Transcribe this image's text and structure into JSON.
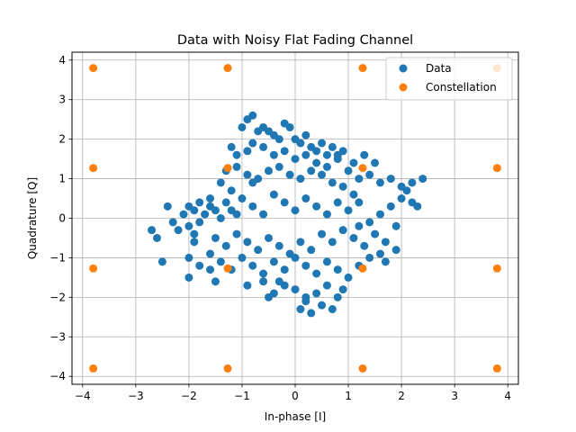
{
  "chart_data": {
    "type": "scatter",
    "title": "Data with Noisy Flat Fading Channel",
    "xlabel": "In-phase [I]",
    "ylabel": "Quadrature [Q]",
    "xlim": [
      -4.2,
      4.2
    ],
    "ylim": [
      -4.2,
      4.2
    ],
    "xticks": [
      -4,
      -3,
      -2,
      -1,
      0,
      1,
      2,
      3,
      4
    ],
    "yticks": [
      -4,
      -3,
      -2,
      -1,
      0,
      1,
      2,
      3,
      4
    ],
    "grid": true,
    "legend": {
      "placement": "top-right",
      "entries": [
        "Data",
        "Constellation"
      ]
    },
    "series": [
      {
        "name": "Data",
        "color": "#1f77b4",
        "points": [
          [
            -1.0,
            2.3
          ],
          [
            -0.9,
            2.5
          ],
          [
            -0.8,
            2.6
          ],
          [
            -0.7,
            2.2
          ],
          [
            -0.6,
            2.3
          ],
          [
            -0.5,
            2.2
          ],
          [
            -0.4,
            2.1
          ],
          [
            -0.3,
            2.0
          ],
          [
            -0.2,
            2.4
          ],
          [
            -0.1,
            2.3
          ],
          [
            0.0,
            2.0
          ],
          [
            0.1,
            1.9
          ],
          [
            0.2,
            2.1
          ],
          [
            0.3,
            1.8
          ],
          [
            0.4,
            1.7
          ],
          [
            0.5,
            1.9
          ],
          [
            0.6,
            1.6
          ],
          [
            0.7,
            1.8
          ],
          [
            0.8,
            1.5
          ],
          [
            0.9,
            1.7
          ],
          [
            -1.2,
            1.8
          ],
          [
            -1.1,
            1.6
          ],
          [
            -0.9,
            1.7
          ],
          [
            -0.8,
            1.9
          ],
          [
            -0.6,
            1.8
          ],
          [
            -0.4,
            1.6
          ],
          [
            -0.2,
            1.7
          ],
          [
            0.0,
            1.5
          ],
          [
            0.2,
            1.6
          ],
          [
            0.4,
            1.4
          ],
          [
            -1.3,
            1.2
          ],
          [
            -1.1,
            1.3
          ],
          [
            -0.9,
            1.1
          ],
          [
            -0.7,
            1.0
          ],
          [
            -0.5,
            1.2
          ],
          [
            -0.3,
            1.3
          ],
          [
            -0.1,
            1.1
          ],
          [
            0.1,
            1.0
          ],
          [
            0.3,
            1.2
          ],
          [
            0.5,
            1.1
          ],
          [
            1.0,
            1.2
          ],
          [
            1.2,
            1.0
          ],
          [
            1.4,
            1.1
          ],
          [
            1.6,
            0.9
          ],
          [
            1.8,
            1.0
          ],
          [
            2.0,
            0.8
          ],
          [
            2.2,
            0.9
          ],
          [
            2.4,
            1.0
          ],
          [
            1.3,
            1.6
          ],
          [
            1.5,
            1.4
          ],
          [
            -2.0,
            0.3
          ],
          [
            -1.9,
            0.2
          ],
          [
            -1.8,
            0.4
          ],
          [
            -1.7,
            0.1
          ],
          [
            -1.6,
            0.3
          ],
          [
            -1.5,
            0.2
          ],
          [
            -1.4,
            0.0
          ],
          [
            -1.3,
            0.4
          ],
          [
            -1.2,
            0.2
          ],
          [
            -1.1,
            0.1
          ],
          [
            -2.4,
            0.3
          ],
          [
            -2.3,
            -0.1
          ],
          [
            -2.2,
            -0.3
          ],
          [
            -2.1,
            0.1
          ],
          [
            -2.0,
            -0.2
          ],
          [
            -1.9,
            -0.4
          ],
          [
            -1.8,
            -0.1
          ],
          [
            -2.6,
            -0.5
          ],
          [
            -2.7,
            -0.3
          ],
          [
            -2.5,
            -1.1
          ],
          [
            -1.0,
            0.5
          ],
          [
            -0.8,
            0.3
          ],
          [
            -0.6,
            0.1
          ],
          [
            -0.4,
            0.6
          ],
          [
            -0.2,
            0.4
          ],
          [
            0.0,
            0.2
          ],
          [
            0.2,
            0.5
          ],
          [
            0.4,
            0.3
          ],
          [
            0.6,
            0.1
          ],
          [
            0.8,
            0.4
          ],
          [
            1.0,
            0.2
          ],
          [
            1.2,
            0.4
          ],
          [
            1.4,
            -0.1
          ],
          [
            1.6,
            0.1
          ],
          [
            1.8,
            0.3
          ],
          [
            2.0,
            0.5
          ],
          [
            2.1,
            0.7
          ],
          [
            2.2,
            0.4
          ],
          [
            2.3,
            0.3
          ],
          [
            1.9,
            -0.2
          ],
          [
            -1.5,
            -0.5
          ],
          [
            -1.3,
            -0.7
          ],
          [
            -1.1,
            -0.4
          ],
          [
            -0.9,
            -0.6
          ],
          [
            -0.7,
            -0.8
          ],
          [
            -0.5,
            -0.5
          ],
          [
            -0.3,
            -0.7
          ],
          [
            -0.1,
            -0.9
          ],
          [
            0.1,
            -0.6
          ],
          [
            0.3,
            -0.8
          ],
          [
            0.5,
            -0.4
          ],
          [
            0.7,
            -0.6
          ],
          [
            0.9,
            -0.3
          ],
          [
            1.1,
            -0.5
          ],
          [
            1.3,
            -0.7
          ],
          [
            1.5,
            -0.4
          ],
          [
            1.7,
            -0.6
          ],
          [
            1.9,
            -0.8
          ],
          [
            1.2,
            -0.2
          ],
          [
            1.6,
            -0.9
          ],
          [
            -2.0,
            -1.0
          ],
          [
            -1.8,
            -1.2
          ],
          [
            -1.6,
            -0.9
          ],
          [
            -1.4,
            -1.1
          ],
          [
            -1.2,
            -1.3
          ],
          [
            -1.0,
            -1.0
          ],
          [
            -0.8,
            -1.2
          ],
          [
            -0.6,
            -1.4
          ],
          [
            -0.4,
            -1.1
          ],
          [
            -0.2,
            -1.3
          ],
          [
            0.0,
            -1.0
          ],
          [
            0.2,
            -1.2
          ],
          [
            0.4,
            -1.4
          ],
          [
            0.6,
            -1.1
          ],
          [
            0.8,
            -1.3
          ],
          [
            1.0,
            -1.5
          ],
          [
            1.2,
            -1.2
          ],
          [
            1.4,
            -1.0
          ],
          [
            1.7,
            -1.1
          ],
          [
            -1.5,
            -1.6
          ],
          [
            -0.9,
            -1.7
          ],
          [
            -0.6,
            -1.6
          ],
          [
            -0.4,
            -1.9
          ],
          [
            -0.2,
            -1.7
          ],
          [
            0.0,
            -1.8
          ],
          [
            0.2,
            -2.0
          ],
          [
            0.4,
            -1.9
          ],
          [
            0.6,
            -1.7
          ],
          [
            0.8,
            -2.0
          ],
          [
            0.9,
            -1.8
          ],
          [
            0.1,
            -2.3
          ],
          [
            0.3,
            -2.4
          ],
          [
            0.5,
            -2.2
          ],
          [
            0.7,
            -2.3
          ],
          [
            0.2,
            -2.1
          ],
          [
            -0.5,
            -2.0
          ],
          [
            -0.3,
            -1.6
          ],
          [
            -2.0,
            -1.5
          ],
          [
            -1.9,
            -0.6
          ],
          [
            -1.6,
            -1.3
          ],
          [
            -1.2,
            0.7
          ],
          [
            -1.4,
            0.9
          ],
          [
            -1.6,
            0.5
          ],
          [
            -0.8,
            0.9
          ],
          [
            0.7,
            0.9
          ],
          [
            0.9,
            0.8
          ],
          [
            1.1,
            0.6
          ],
          [
            0.6,
            1.3
          ],
          [
            0.8,
            1.6
          ],
          [
            1.1,
            1.4
          ]
        ]
      },
      {
        "name": "Constellation",
        "color": "#ff7f0e",
        "points": [
          [
            -3.8,
            3.8
          ],
          [
            -1.27,
            3.8
          ],
          [
            1.27,
            3.8
          ],
          [
            3.8,
            3.8
          ],
          [
            -3.8,
            1.27
          ],
          [
            -1.27,
            1.27
          ],
          [
            1.27,
            1.27
          ],
          [
            3.8,
            1.27
          ],
          [
            -3.8,
            -1.27
          ],
          [
            -1.27,
            -1.27
          ],
          [
            1.27,
            -1.27
          ],
          [
            3.8,
            -1.27
          ],
          [
            -3.8,
            -3.8
          ],
          [
            -1.27,
            -3.8
          ],
          [
            1.27,
            -3.8
          ],
          [
            3.8,
            -3.8
          ]
        ]
      }
    ]
  }
}
